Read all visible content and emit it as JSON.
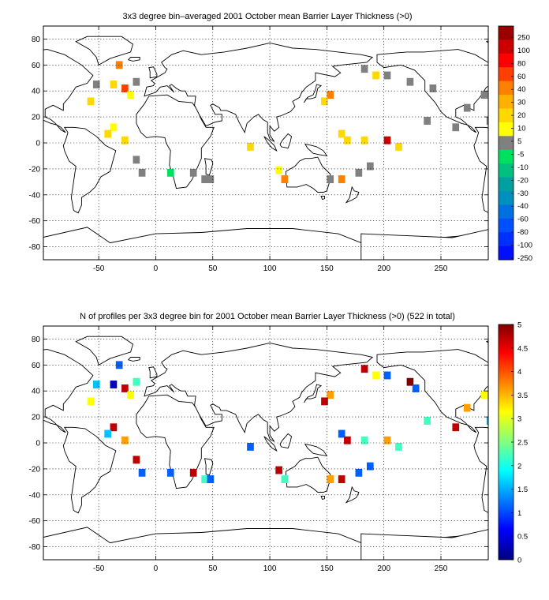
{
  "figure": {
    "panels": [
      {
        "id": "top",
        "title": "3x3 degree bin–averaged 2001 October mean Barrier Layer Thickness (>0)",
        "xticks": [
          "-50",
          "0",
          "50",
          "100",
          "150",
          "200",
          "250"
        ],
        "yticks": [
          "80",
          "60",
          "40",
          "20",
          "0",
          "-20",
          "-40",
          "-60",
          "-80"
        ],
        "colorbar": {
          "labels": [
            "250",
            "100",
            "80",
            "60",
            "40",
            "30",
            "20",
            "10",
            "5",
            "-5",
            "-10",
            "-20",
            "-30",
            "-40",
            "-60",
            "-80",
            "-100",
            "-250"
          ],
          "colors": [
            "#9a0000",
            "#cc0000",
            "#ff0000",
            "#ff4000",
            "#ff8000",
            "#ffb000",
            "#ffd800",
            "#ffff00",
            "#808080",
            "#00e060",
            "#00c080",
            "#00a0a0",
            "#0090c0",
            "#0070e0",
            "#0050ff",
            "#0030ff",
            "#0010ff"
          ]
        }
      },
      {
        "id": "bottom",
        "title": "N of profiles per 3x3 degree bin for 2001 October mean Barrier Layer Thickness (>0) (522 in total)",
        "xticks": [
          "-50",
          "0",
          "50",
          "100",
          "150",
          "200",
          "250"
        ],
        "yticks": [
          "80",
          "60",
          "40",
          "20",
          "0",
          "-20",
          "-40",
          "-60",
          "-80"
        ],
        "colorbar": {
          "labels": [
            "5",
            "4.5",
            "4",
            "3.5",
            "3",
            "2.5",
            "2",
            "1.5",
            "1",
            "0.5",
            "0"
          ]
        }
      }
    ]
  }
}
